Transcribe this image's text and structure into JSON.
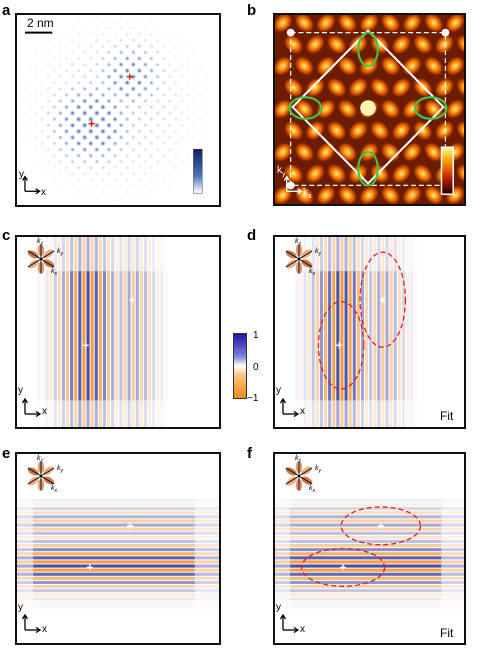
{
  "figure": {
    "panels": [
      {
        "letter": "a",
        "scale_bar": "2 nm",
        "axis_x": "x",
        "axis_y": "y"
      },
      {
        "letter": "b",
        "axis_x": "k",
        "axis_x_sub": "x",
        "axis_y": "k",
        "axis_y_sub": "y"
      },
      {
        "letter": "c",
        "axis_x": "x",
        "axis_y": "y"
      },
      {
        "letter": "d",
        "axis_x": "x",
        "axis_y": "y",
        "fit_label": "Fit"
      },
      {
        "letter": "e",
        "axis_x": "x",
        "axis_y": "y"
      },
      {
        "letter": "f",
        "axis_x": "x",
        "axis_y": "y",
        "fit_label": "Fit"
      }
    ],
    "colorbar": {
      "max": "1",
      "mid": "0",
      "min": "−1"
    },
    "orbital_labels": {
      "kz": "k",
      "kz_sub": "z",
      "ky": "k",
      "ky_sub": "y",
      "kx": "k",
      "kx_sub": "x"
    },
    "colors": {
      "blue": "#2a2f9a",
      "orange": "#f08a1a",
      "green": "#3ec63e",
      "fit_red": "#e02020",
      "lobe": "#e8a06a"
    }
  }
}
